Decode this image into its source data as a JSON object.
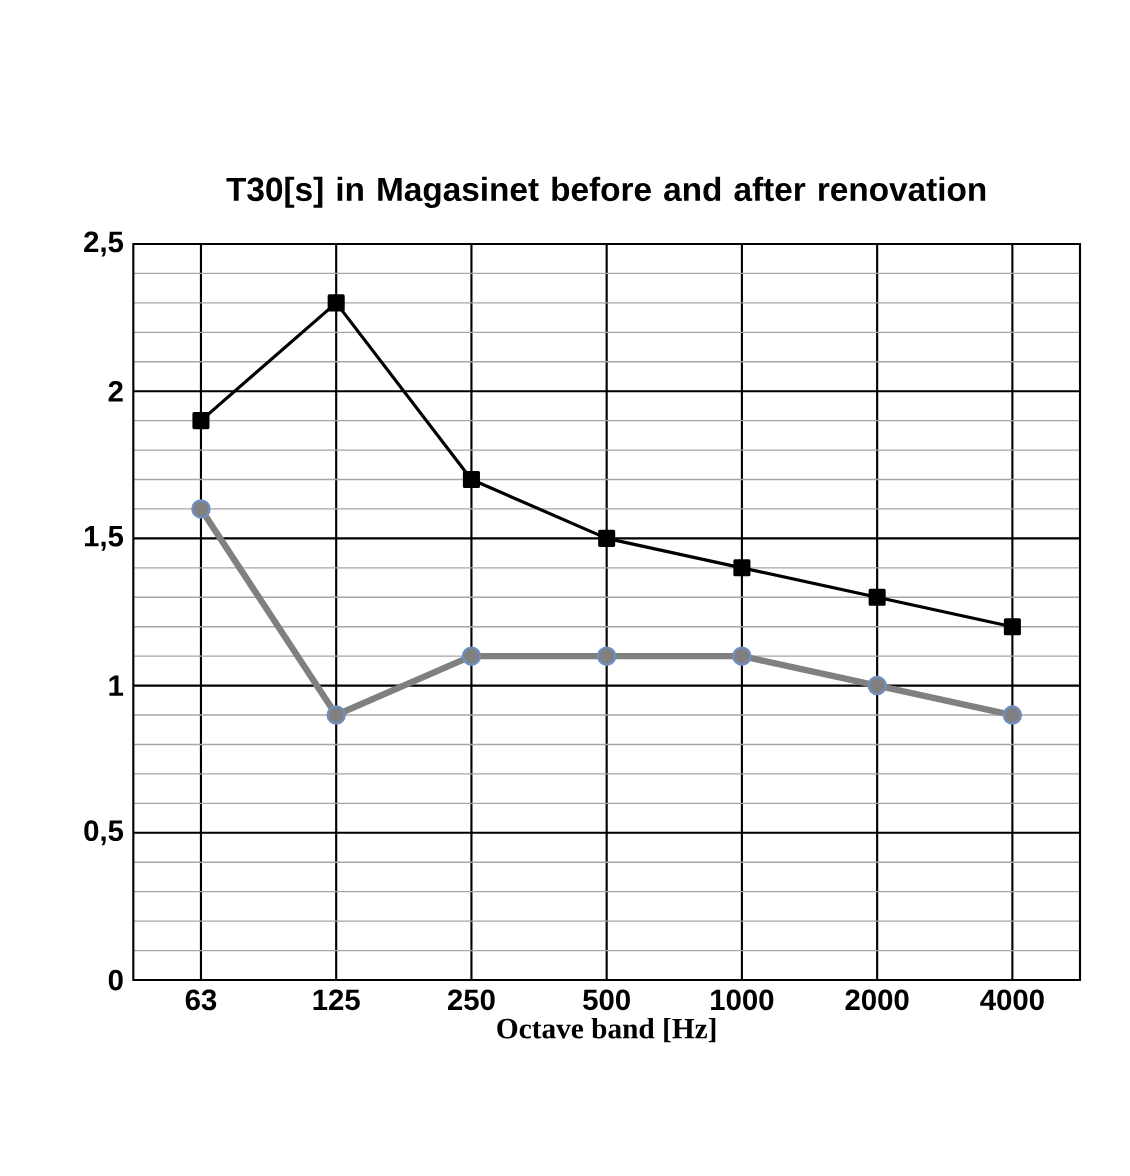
{
  "chart_data": {
    "type": "line",
    "title": "T30[s] in Magasinet before and after renovation",
    "xlabel": "Octave band [Hz]",
    "categories": [
      "63",
      "125",
      "250",
      "500",
      "1000",
      "2000",
      "4000"
    ],
    "series": [
      {
        "color": "#000000",
        "marker": "square",
        "values": [
          1.9,
          2.3,
          1.7,
          1.5,
          1.4,
          1.3,
          1.2
        ]
      },
      {
        "color": "#808080",
        "marker": "circle",
        "values": [
          1.6,
          0.9,
          1.1,
          1.1,
          1.1,
          1.0,
          0.9
        ]
      }
    ],
    "ylim": [
      0,
      2.5
    ],
    "yticks": [
      0,
      {
        "value": 0.5,
        "label": "0,5"
      },
      1,
      {
        "value": 1.5,
        "label": "1,5"
      },
      2,
      {
        "value": 2.5,
        "label": "2,5"
      }
    ],
    "grid": true
  }
}
